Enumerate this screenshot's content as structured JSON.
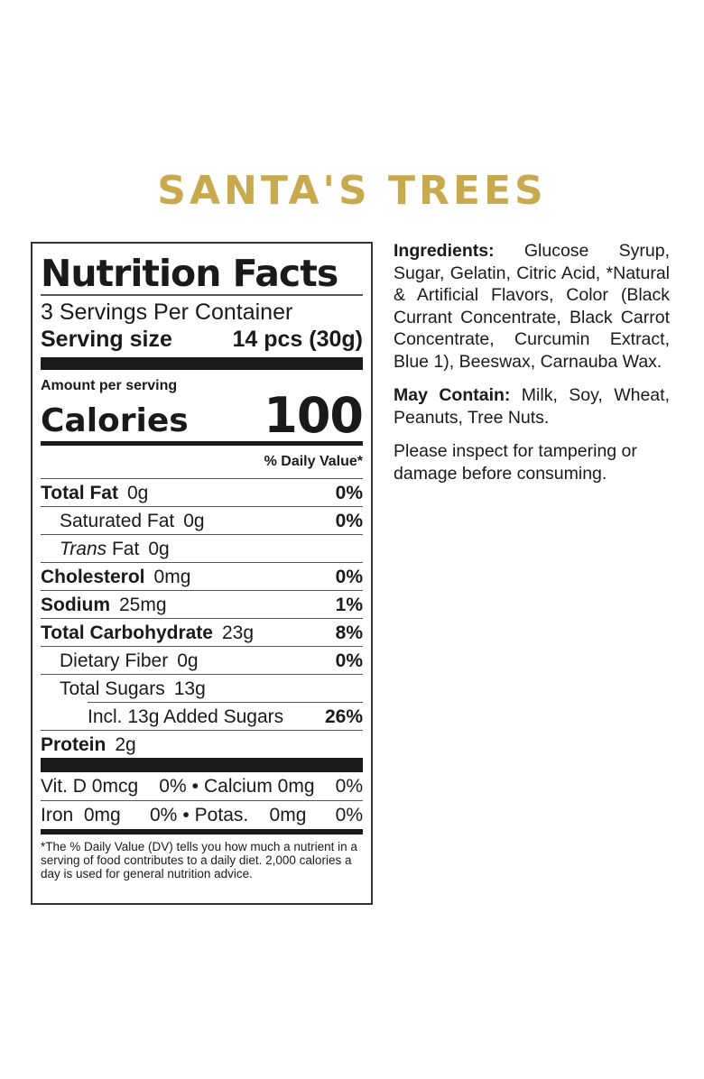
{
  "product_title": "SANTA'S TREES",
  "title_color": "#c9a94e",
  "nutrition": {
    "heading": "Nutrition Facts",
    "servings_per_container": "3 Servings Per Container",
    "serving_size_label": "Serving size",
    "serving_size_value": "14 pcs (30g)",
    "amount_per_serving": "Amount per serving",
    "calories_label": "Calories",
    "calories_value": "100",
    "daily_value_header": "% Daily Value*",
    "rows": [
      {
        "name": "Total Fat",
        "amount": "0g",
        "dv": "0%"
      },
      {
        "name": "Saturated Fat",
        "amount": "0g",
        "dv": "0%"
      },
      {
        "name": "Trans",
        "name_suffix": " Fat",
        "amount": "0g",
        "dv": ""
      },
      {
        "name": "Cholesterol",
        "amount": "0mg",
        "dv": "0%"
      },
      {
        "name": "Sodium",
        "amount": "25mg",
        "dv": "1%"
      },
      {
        "name": "Total Carbohydrate",
        "amount": "23g",
        "dv": "8%"
      },
      {
        "name": "Dietary Fiber",
        "amount": "0g",
        "dv": "0%"
      },
      {
        "name": "Total Sugars",
        "amount": "13g",
        "dv": ""
      },
      {
        "name": "Incl. 13g Added Sugars",
        "amount": "",
        "dv": "26%"
      },
      {
        "name": "Protein",
        "amount": "2g",
        "dv": ""
      }
    ],
    "minerals": [
      {
        "left": "Vit. D 0mcg",
        "left_dv": "0%",
        "right": "Calcium 0mg",
        "right_dv": "0%"
      },
      {
        "left": "Iron  0mg",
        "left_dv": "0%",
        "right": "Potas.    0mg",
        "right_dv": "0%"
      }
    ],
    "bullet": "•",
    "footnote": "*The % Daily Value (DV) tells you how much a nutrient in a serving of food contributes to a daily diet. 2,000 calories a day is used for general nutrition advice."
  },
  "ingredients": {
    "label": "Ingredients:",
    "text": " Glucose Syrup, Sugar, Gelatin, Citric Acid, *Natural & Artificial Flavors, Color (Black Currant Concentrate, Black Carrot Concentrate, Curcumin Extract, Blue 1), Beeswax, Carnauba Wax."
  },
  "may_contain": {
    "label": "May Contain:",
    "text": " Milk, Soy, Wheat, Peanuts, Tree Nuts."
  },
  "notice": "Please inspect for tampering or damage before consuming."
}
